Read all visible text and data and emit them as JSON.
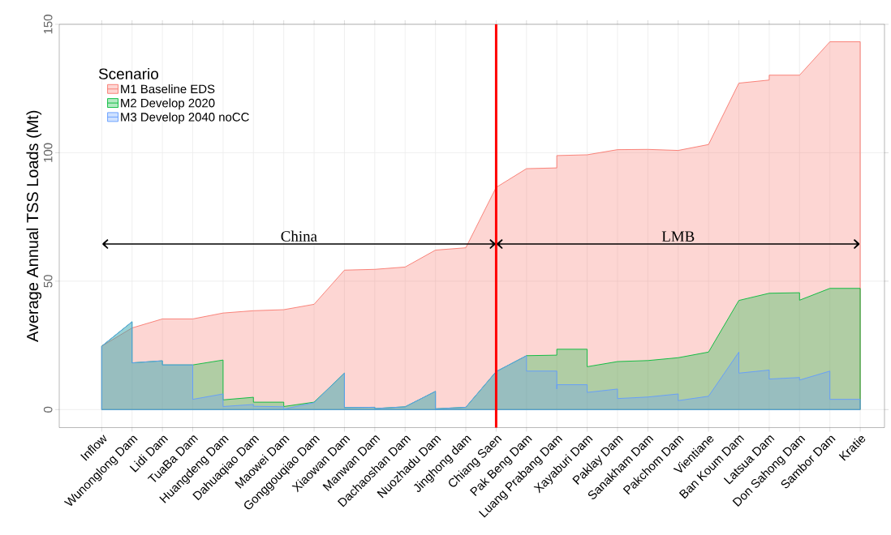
{
  "chart_data": {
    "type": "area",
    "ylabel": "Average Annual TSS Loads (Mt)",
    "legend_title": "Scenario",
    "ylim": [
      -7,
      150
    ],
    "yticks": [
      0,
      50,
      100,
      150
    ],
    "categories": [
      "Inflow",
      "Wunonglong Dam",
      "Lidi Dam",
      "TuaBa Dam",
      "Huangdeng Dam",
      "Dahuaqiao Dam",
      "Maowei Dam",
      "Gonggouqiao Dam",
      "Xiaowan Dam",
      "Manwan Dam",
      "Dachaoshan Dam",
      "Nuozhadu Dam",
      "Jinghong dam",
      "Chiang Saen",
      "Pak Beng Dam",
      "Luang Prabang Dam",
      "Xayaburi Dam",
      "Paklay Dam",
      "Sanakham Dam",
      "Pakchom Dam",
      "Vientiane",
      "Ban Koum Dam",
      "Latsua Dam",
      "Don Sahong Dam",
      "Sambor Dam",
      "Kratie"
    ],
    "grid": true,
    "legend": "top left",
    "series": [
      {
        "name": "M1 Baseline EDS",
        "color": "#f8766d",
        "x": [
          "Inflow",
          "Wunonglong Dam",
          "Lidi Dam",
          "TuaBa Dam",
          "Huangdeng Dam",
          "Dahuaqiao Dam",
          "Maowei Dam",
          "Gonggouqiao Dam",
          "Xiaowan Dam",
          "Manwan Dam",
          "Dachaoshan Dam",
          "Nuozhadu Dam",
          "Jinghong dam",
          "Chiang Saen",
          "Pak Beng Dam",
          "Luang Prabang Dam",
          "Luang Prabang Dam",
          "Xayaburi Dam",
          "Paklay Dam",
          "Sanakham Dam",
          "Pakchom Dam",
          "Vientiane",
          "Ban Koum Dam",
          "Latsua Dam",
          "Latsua Dam",
          "Don Sahong Dam",
          "Sambor Dam",
          "Kratie"
        ],
        "values": [
          24.7,
          31.8,
          35.3,
          35.3,
          37.6,
          38.5,
          38.9,
          41,
          54.3,
          54.6,
          55.5,
          62.1,
          63,
          86.5,
          93.8,
          94.1,
          98.9,
          99.2,
          101.2,
          101.3,
          100.9,
          103.2,
          127.1,
          128.3,
          130.2,
          130.2,
          143.2,
          143.2
        ]
      },
      {
        "name": "M2 Develop 2020",
        "color": "#00ba38",
        "x": [
          "Inflow",
          "Wunonglong Dam",
          "Wunonglong Dam",
          "Lidi Dam",
          "Lidi Dam",
          "TuaBa Dam",
          "Huangdeng Dam",
          "Huangdeng Dam",
          "Dahuaqiao Dam",
          "Dahuaqiao Dam",
          "Maowei Dam",
          "Maowei Dam",
          "Gonggouqiao Dam",
          "Xiaowan Dam",
          "Xiaowan Dam",
          "Manwan Dam",
          "Manwan Dam",
          "Dachaoshan Dam",
          "Nuozhadu Dam",
          "Nuozhadu Dam",
          "Jinghong dam",
          "Chiang Saen",
          "Pak Beng Dam",
          "Luang Prabang Dam",
          "Luang Prabang Dam",
          "Xayaburi Dam",
          "Xayaburi Dam",
          "Paklay Dam",
          "Sanakham Dam",
          "Pakchom Dam",
          "Vientiane",
          "Ban Koum Dam",
          "Latsua Dam",
          "Don Sahong Dam",
          "Don Sahong Dam",
          "Sambor Dam",
          "Kratie"
        ],
        "values": [
          24.7,
          34.2,
          18.2,
          19.0,
          17.4,
          17.4,
          19.3,
          3.8,
          4.8,
          2.9,
          2.9,
          1.2,
          2.9,
          14.2,
          0.8,
          0.9,
          0.4,
          1.1,
          7.1,
          0.3,
          0.9,
          14.8,
          21.0,
          21.2,
          23.5,
          23.5,
          16.7,
          18.7,
          19.1,
          20.2,
          22.4,
          42.5,
          45.3,
          45.5,
          42.6,
          47.2,
          47.2
        ]
      },
      {
        "name": "M3 Develop 2040 noCC",
        "color": "#619cff",
        "x": [
          "Inflow",
          "Wunonglong Dam",
          "Wunonglong Dam",
          "Lidi Dam",
          "Lidi Dam",
          "TuaBa Dam",
          "TuaBa Dam",
          "Huangdeng Dam",
          "Huangdeng Dam",
          "Dahuaqiao Dam",
          "Dahuaqiao Dam",
          "Maowei Dam",
          "Maowei Dam",
          "Gonggouqiao Dam",
          "Xiaowan Dam",
          "Xiaowan Dam",
          "Manwan Dam",
          "Manwan Dam",
          "Dachaoshan Dam",
          "Nuozhadu Dam",
          "Nuozhadu Dam",
          "Jinghong dam",
          "Chiang Saen",
          "Pak Beng Dam",
          "Pak Beng Dam",
          "Luang Prabang Dam",
          "Luang Prabang Dam",
          "Luang Prabang Dam",
          "Xayaburi Dam",
          "Xayaburi Dam",
          "Paklay Dam",
          "Paklay Dam",
          "Sanakham Dam",
          "Pakchom Dam",
          "Pakchom Dam",
          "Vientiane",
          "Ban Koum Dam",
          "Ban Koum Dam",
          "Latsua Dam",
          "Latsua Dam",
          "Don Sahong Dam",
          "Don Sahong Dam",
          "Sambor Dam",
          "Sambor Dam",
          "Kratie"
        ],
        "values": [
          24.7,
          34.2,
          18.2,
          19.0,
          17.4,
          17.4,
          4.0,
          6.1,
          1.2,
          2.0,
          1.3,
          1.1,
          0.2,
          2.7,
          14.2,
          0.8,
          0.9,
          0.4,
          1.1,
          7.1,
          0.3,
          0.9,
          14.8,
          21.0,
          15.0,
          15.0,
          8.0,
          9.7,
          9.7,
          6.7,
          8.0,
          4.3,
          4.9,
          6.1,
          3.5,
          5.2,
          22.4,
          14.2,
          15.4,
          11.9,
          12.5,
          11.5,
          15.0,
          4.0,
          4.0
        ]
      }
    ],
    "ref_lines": [
      {
        "axis": "x",
        "value": "Chiang Saen",
        "color": "#ff0000"
      }
    ],
    "annotations": [
      "China",
      "LMB"
    ]
  }
}
